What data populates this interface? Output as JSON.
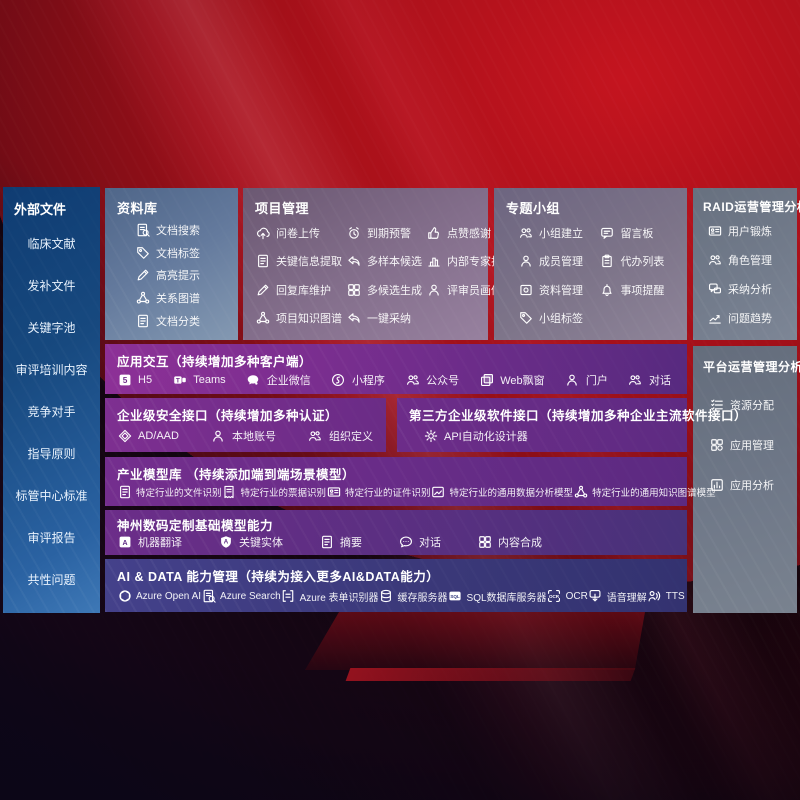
{
  "colors": {
    "background_red": "#a31019",
    "sidebar_blue": "#17497f",
    "row_purple": "#722d8c",
    "row_indigo": "#3a3878",
    "panel_gray": "#737c8c",
    "text": "#ffffff"
  },
  "sidebar": {
    "title": "外部文件",
    "items": [
      {
        "label": "临床文献"
      },
      {
        "label": "发补文件"
      },
      {
        "label": "关键字池"
      },
      {
        "label": "审评培训内容"
      },
      {
        "label": "竞争对手"
      },
      {
        "label": "指导原则"
      },
      {
        "label": "标管中心标准"
      },
      {
        "label": "审评报告"
      },
      {
        "label": "共性问题"
      }
    ]
  },
  "panels": {
    "repo": {
      "title": "资料库",
      "items": [
        {
          "icon": "doc-search-icon",
          "label": "文档搜索"
        },
        {
          "icon": "tag-icon",
          "label": "文档标签"
        },
        {
          "icon": "highlight-pen-icon",
          "label": "高亮提示"
        },
        {
          "icon": "knowledge-graph-icon",
          "label": "关系图谱"
        },
        {
          "icon": "doc-category-icon",
          "label": "文档分类"
        }
      ]
    },
    "project": {
      "title": "项目管理",
      "items": [
        {
          "icon": "cloud-upload-icon",
          "label": "问卷上传"
        },
        {
          "icon": "alarm-icon",
          "label": "到期预警"
        },
        {
          "icon": "thumbs-up-icon",
          "label": "点赞感谢"
        },
        {
          "icon": "info-extract-icon",
          "label": "关键信息提取"
        },
        {
          "icon": "reply-arrow-icon",
          "label": "多样本候选"
        },
        {
          "icon": "ranking-icon",
          "label": "内部专家排名"
        },
        {
          "icon": "edit-pen-icon",
          "label": "回复库维护"
        },
        {
          "icon": "multi-generate-icon",
          "label": "多候选生成"
        },
        {
          "icon": "reviewer-profile-icon",
          "label": "评审员画像"
        },
        {
          "icon": "knowledge-graph-icon",
          "label": "项目知识图谱"
        },
        {
          "icon": "adopt-arrow-icon",
          "label": "一键采纳"
        }
      ]
    },
    "group": {
      "title": "专题小组",
      "items": [
        {
          "icon": "team-icon",
          "label": "小组建立"
        },
        {
          "icon": "message-board-icon",
          "label": "留言板"
        },
        {
          "icon": "member-icon",
          "label": "成员管理"
        },
        {
          "icon": "todo-list-icon",
          "label": "代办列表"
        },
        {
          "icon": "asset-icon",
          "label": "资料管理"
        },
        {
          "icon": "bell-icon",
          "label": "事项提醒"
        },
        {
          "icon": "tag-icon",
          "label": "小组标签"
        }
      ]
    },
    "raid": {
      "title": "RAID运营管理分析",
      "items": [
        {
          "icon": "id-card-icon",
          "label": "用户锻炼"
        },
        {
          "icon": "roles-icon",
          "label": "角色管理"
        },
        {
          "icon": "qa-chat-icon",
          "label": "采纳分析"
        },
        {
          "icon": "trend-icon",
          "label": "问题趋势"
        }
      ]
    },
    "platform": {
      "title": "平台运营管理分析",
      "items": [
        {
          "icon": "list-check-icon",
          "label": "资源分配"
        },
        {
          "icon": "apps-icon",
          "label": "应用管理"
        },
        {
          "icon": "chart-box-icon",
          "label": "应用分析"
        }
      ]
    },
    "interaction": {
      "title": "应用交互（持续增加多种客户端）",
      "items": [
        {
          "icon": "html5-icon",
          "label": "H5"
        },
        {
          "icon": "teams-icon",
          "label": "Teams"
        },
        {
          "icon": "wechat-work-icon",
          "label": "企业微信"
        },
        {
          "icon": "miniprogram-icon",
          "label": "小程序"
        },
        {
          "icon": "official-account-icon",
          "label": "公众号"
        },
        {
          "icon": "web-popup-icon",
          "label": "Web飘窗"
        },
        {
          "icon": "portal-icon",
          "label": "门户"
        },
        {
          "icon": "dialog-icon",
          "label": "对话"
        }
      ]
    },
    "security": {
      "title": "企业级安全接口（持续增加多种认证）",
      "items": [
        {
          "icon": "ad-shield-icon",
          "label": "AD/AAD"
        },
        {
          "icon": "local-account-icon",
          "label": "本地账号"
        },
        {
          "icon": "org-define-icon",
          "label": "组织定义"
        }
      ]
    },
    "thirdparty": {
      "title": "第三方企业级软件接口（持续增加多种企业主流软件接口）",
      "items": [
        {
          "icon": "api-gear-icon",
          "label": "API自动化设计器"
        }
      ]
    },
    "industry": {
      "title": "产业模型库 （持续添加端到端场景模型）",
      "items": [
        {
          "icon": "file-recog-icon",
          "label": "特定行业的文件识别"
        },
        {
          "icon": "receipt-recog-icon",
          "label": "特定行业的票据识别"
        },
        {
          "icon": "idcard-recog-icon",
          "label": "特定行业的证件识别"
        },
        {
          "icon": "data-model-icon",
          "label": "特定行业的通用数据分析模型"
        },
        {
          "icon": "kg-model-icon",
          "label": "特定行业的通用知识图谱模型"
        }
      ]
    },
    "base": {
      "title": "神州数码定制基础模型能力",
      "items": [
        {
          "icon": "translate-icon",
          "label": "机器翻译"
        },
        {
          "icon": "entity-shield-icon",
          "label": "关键实体"
        },
        {
          "icon": "summary-doc-icon",
          "label": "摘要"
        },
        {
          "icon": "chat-dots-icon",
          "label": "对话"
        },
        {
          "icon": "compose-grid-icon",
          "label": "内容合成"
        }
      ]
    },
    "aidata": {
      "title": "AI & DATA 能力管理（持续为接入更多AI&DATA能力）",
      "items": [
        {
          "icon": "openai-icon",
          "label": "Azure Open AI"
        },
        {
          "icon": "azure-search-icon",
          "label": "Azure Search"
        },
        {
          "icon": "form-recognizer-icon",
          "label": "Azure 表单识别器"
        },
        {
          "icon": "cache-server-icon",
          "label": "缓存服务器"
        },
        {
          "icon": "sql-db-icon",
          "label": "SQL数据库服务器"
        },
        {
          "icon": "ocr-icon",
          "label": "OCR"
        },
        {
          "icon": "speech-icon",
          "label": "语音理解"
        },
        {
          "icon": "tts-icon",
          "label": "TTS"
        }
      ]
    }
  }
}
